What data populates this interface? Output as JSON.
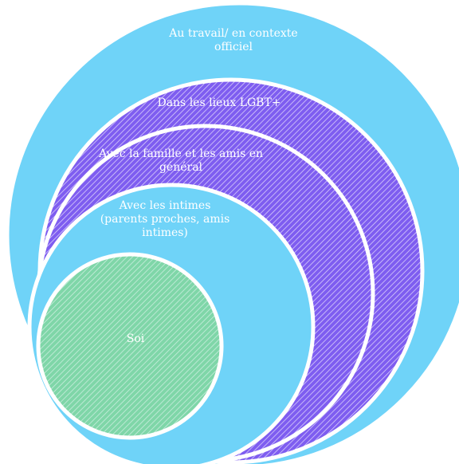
{
  "diagram": {
    "rings": [
      {
        "id": "outer",
        "lines": [
          "Au travail/ en contexte",
          "officiel"
        ]
      },
      {
        "id": "lgbt",
        "lines": [
          "Dans les lieux LGBT+"
        ]
      },
      {
        "id": "family",
        "lines": [
          "Avec la famille et les amis en",
          "général"
        ]
      },
      {
        "id": "intimate",
        "lines": [
          "Avec les intimes",
          "(parents proches, amis",
          "intimes)"
        ]
      },
      {
        "id": "self",
        "lines": [
          "Soi"
        ]
      }
    ]
  },
  "colors": {
    "outer_fill": "#6fd3f8",
    "purple_fill": "#7e5df0",
    "hatch_light": "#d9cdfb",
    "self_fill": "#7fd6a8",
    "self_hatch": "#c9eede",
    "border": "#ffffff"
  }
}
